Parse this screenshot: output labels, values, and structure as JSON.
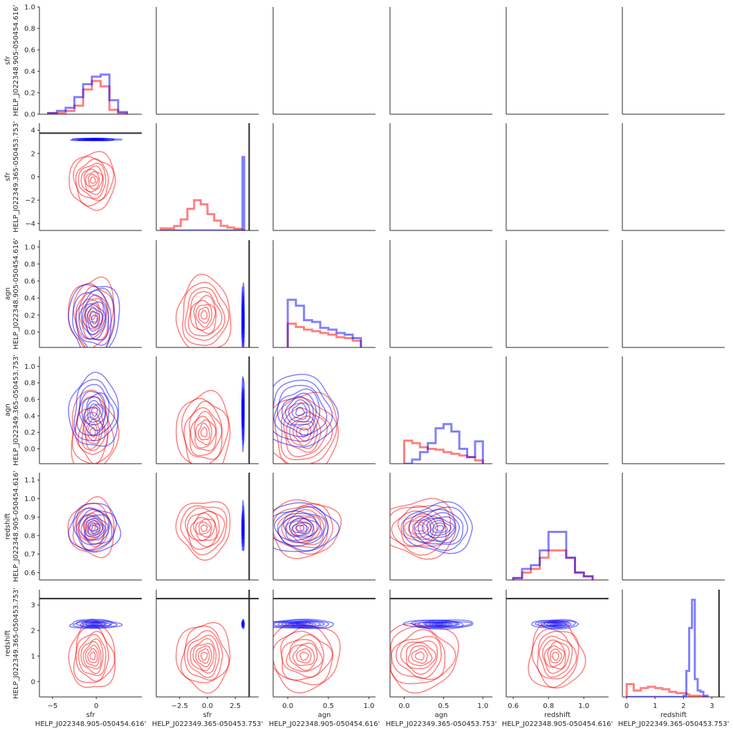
{
  "chart_data": {
    "type": "pairplot",
    "variables": [
      {
        "label_top": "sfr",
        "label_bottom": "HELP_J022348.905-050454.616'",
        "range": [
          -6.5,
          5.2
        ],
        "ticks": [
          -5,
          0
        ],
        "tick_labels": [
          "−5",
          "0"
        ],
        "yticks": [
          0.0,
          0.2,
          0.4,
          0.6,
          0.8,
          1.0
        ],
        "ytick_labels": [
          "0.0",
          "0.2",
          "0.4",
          "0.6",
          "0.8",
          "1.0"
        ],
        "yrange": [
          0,
          1
        ]
      },
      {
        "label_top": "sfr",
        "label_bottom": "HELP_J022349.365-050453.753'",
        "range": [
          -4.6,
          4.6
        ],
        "ticks": [
          -2.5,
          0.0,
          2.5
        ],
        "tick_labels": [
          "−2.5",
          "0.0",
          "2.5"
        ],
        "yticks": [
          -4,
          -2,
          0,
          2,
          4
        ],
        "ytick_labels": [
          "−4",
          "−2",
          "0",
          "2",
          "4"
        ],
        "yrange": [
          -4.6,
          4.6
        ]
      },
      {
        "label_top": "agn",
        "label_bottom": "HELP_J022348.905-050454.616'",
        "range": [
          -0.18,
          1.08
        ],
        "ticks": [
          0.0,
          0.5,
          1.0
        ],
        "tick_labels": [
          "0.0",
          "0.5",
          "1.0"
        ],
        "yticks": [
          0.0,
          0.2,
          0.4,
          0.6,
          0.8,
          1.0
        ],
        "ytick_labels": [
          "0.0",
          "0.2",
          "0.4",
          "0.6",
          "0.8",
          "1.0"
        ],
        "yrange": [
          -0.18,
          1.08
        ]
      },
      {
        "label_top": "agn",
        "label_bottom": "HELP_J022349.365-050453.753'",
        "range": [
          -0.18,
          1.12
        ],
        "ticks": [
          0.0,
          0.5,
          1.0
        ],
        "tick_labels": [
          "0.0",
          "0.5",
          "1.0"
        ],
        "yticks": [
          0.0,
          0.2,
          0.4,
          0.6,
          0.8,
          1.0
        ],
        "ytick_labels": [
          "0.0",
          "0.2",
          "0.4",
          "0.6",
          "0.8",
          "1.0"
        ],
        "yrange": [
          -0.18,
          1.12
        ]
      },
      {
        "label_top": "redshift",
        "label_bottom": "HELP_J022348.905-050454.616'",
        "range": [
          0.56,
          1.14
        ],
        "ticks": [
          0.6,
          0.8,
          1.0
        ],
        "tick_labels": [
          "0.6",
          "0.8",
          "1.0"
        ],
        "yticks": [
          0.6,
          0.7,
          0.8,
          0.9,
          1.0,
          1.1
        ],
        "ytick_labels": [
          "0.6",
          "0.7",
          "0.8",
          "0.9",
          "1.0",
          "1.1"
        ],
        "yrange": [
          0.56,
          1.14
        ]
      },
      {
        "label_top": "redshift",
        "label_bottom": "HELP_J022349.365-050453.753'",
        "range": [
          -0.15,
          3.45
        ],
        "ticks": [
          0,
          1,
          2,
          3
        ],
        "tick_labels": [
          "0",
          "1",
          "2",
          "3"
        ],
        "yticks": [
          0,
          1,
          2,
          3
        ],
        "ytick_labels": [
          "0",
          "1",
          "2",
          "3"
        ],
        "yrange": [
          -0.6,
          3.6
        ]
      }
    ],
    "reference_values": [
      null,
      3.75,
      null,
      null,
      null,
      3.25
    ],
    "series": [
      {
        "color": "#ff0000",
        "means": [
          -0.4,
          -0.3,
          0.2,
          0.2,
          0.84,
          1.0
        ],
        "sds": [
          1.2,
          1.1,
          0.2,
          0.22,
          0.07,
          0.6
        ]
      },
      {
        "color": "#0000ff",
        "means": [
          -0.2,
          3.2,
          0.15,
          0.45,
          0.84,
          2.25
        ],
        "sds": [
          1.3,
          0.05,
          0.2,
          0.2,
          0.06,
          0.08
        ]
      }
    ],
    "diagonal_histograms": [
      {
        "edges": [
          -5.5,
          -4.5,
          -3.5,
          -2.5,
          -1.5,
          -0.5,
          0.5,
          1.5,
          2.5,
          3.5
        ],
        "red": [
          0.01,
          0.01,
          0.03,
          0.08,
          0.23,
          0.31,
          0.26,
          0.04,
          0.01
        ],
        "blue": [
          0.01,
          0.03,
          0.06,
          0.16,
          0.28,
          0.35,
          0.37,
          0.13,
          0.02
        ]
      },
      {
        "edges": [
          -4.2,
          -3.6,
          -3.0,
          -2.4,
          -1.8,
          -1.2,
          -0.6,
          0.0,
          0.6,
          1.2,
          1.8,
          2.4,
          3.0,
          3.15,
          3.3
        ],
        "red": [
          -4.42,
          -4.42,
          -4.22,
          -3.65,
          -2.75,
          -2.0,
          -2.35,
          -3.2,
          -3.75,
          -4.2,
          -4.35,
          -4.45,
          -4.55,
          -4.55
        ],
        "blue": [
          -4.6,
          -4.6,
          -4.6,
          -4.6,
          -4.6,
          -4.6,
          -4.6,
          -4.6,
          -4.6,
          -4.6,
          -4.6,
          -4.6,
          -4.6,
          1.7
        ]
      },
      {
        "edges": [
          0.0,
          0.1,
          0.2,
          0.3,
          0.4,
          0.5,
          0.6,
          0.7,
          0.8,
          0.9
        ],
        "red": [
          0.1,
          0.06,
          0.03,
          0.01,
          -0.01,
          -0.03,
          -0.06,
          -0.07,
          -0.1
        ],
        "blue": [
          0.38,
          0.31,
          0.14,
          0.12,
          0.05,
          0.03,
          -0.01,
          -0.03,
          -0.07
        ]
      },
      {
        "edges": [
          0.0,
          0.1,
          0.2,
          0.3,
          0.4,
          0.5,
          0.6,
          0.7,
          0.8,
          0.9,
          1.0
        ],
        "red": [
          0.1,
          0.07,
          0.02,
          0.0,
          -0.01,
          -0.04,
          -0.06,
          -0.08,
          -0.1,
          -0.14
        ],
        "blue": [
          -0.18,
          -0.13,
          -0.04,
          0.07,
          0.25,
          0.3,
          0.21,
          0.0,
          -0.1,
          0.09
        ]
      },
      {
        "edges": [
          0.6,
          0.65,
          0.7,
          0.75,
          0.8,
          0.85,
          0.9,
          0.95,
          1.0,
          1.05
        ],
        "red": [
          0.57,
          0.6,
          0.62,
          0.68,
          0.72,
          0.72,
          0.68,
          0.6,
          0.58
        ],
        "blue": [
          0.57,
          0.62,
          0.64,
          0.72,
          0.82,
          0.82,
          0.68,
          0.6,
          0.58
        ]
      },
      {
        "edges": [
          0.0,
          0.25,
          0.5,
          0.75,
          1.0,
          1.25,
          1.5,
          1.75,
          2.0,
          2.1,
          2.2,
          2.3,
          2.4,
          2.5,
          2.6,
          2.7,
          2.85
        ],
        "red": [
          -0.1,
          -0.35,
          -0.25,
          -0.2,
          -0.25,
          -0.3,
          -0.4,
          -0.45,
          -0.45,
          -0.5,
          -0.55,
          -0.55,
          -0.55,
          -0.55,
          -0.58,
          -0.6
        ],
        "blue": [
          -0.6,
          -0.6,
          -0.6,
          -0.6,
          -0.6,
          -0.6,
          -0.6,
          -0.6,
          -0.55,
          0.42,
          2.1,
          3.2,
          0.1,
          -0.35,
          -0.4,
          -0.55
        ]
      }
    ],
    "grid": false,
    "legend": "none"
  }
}
